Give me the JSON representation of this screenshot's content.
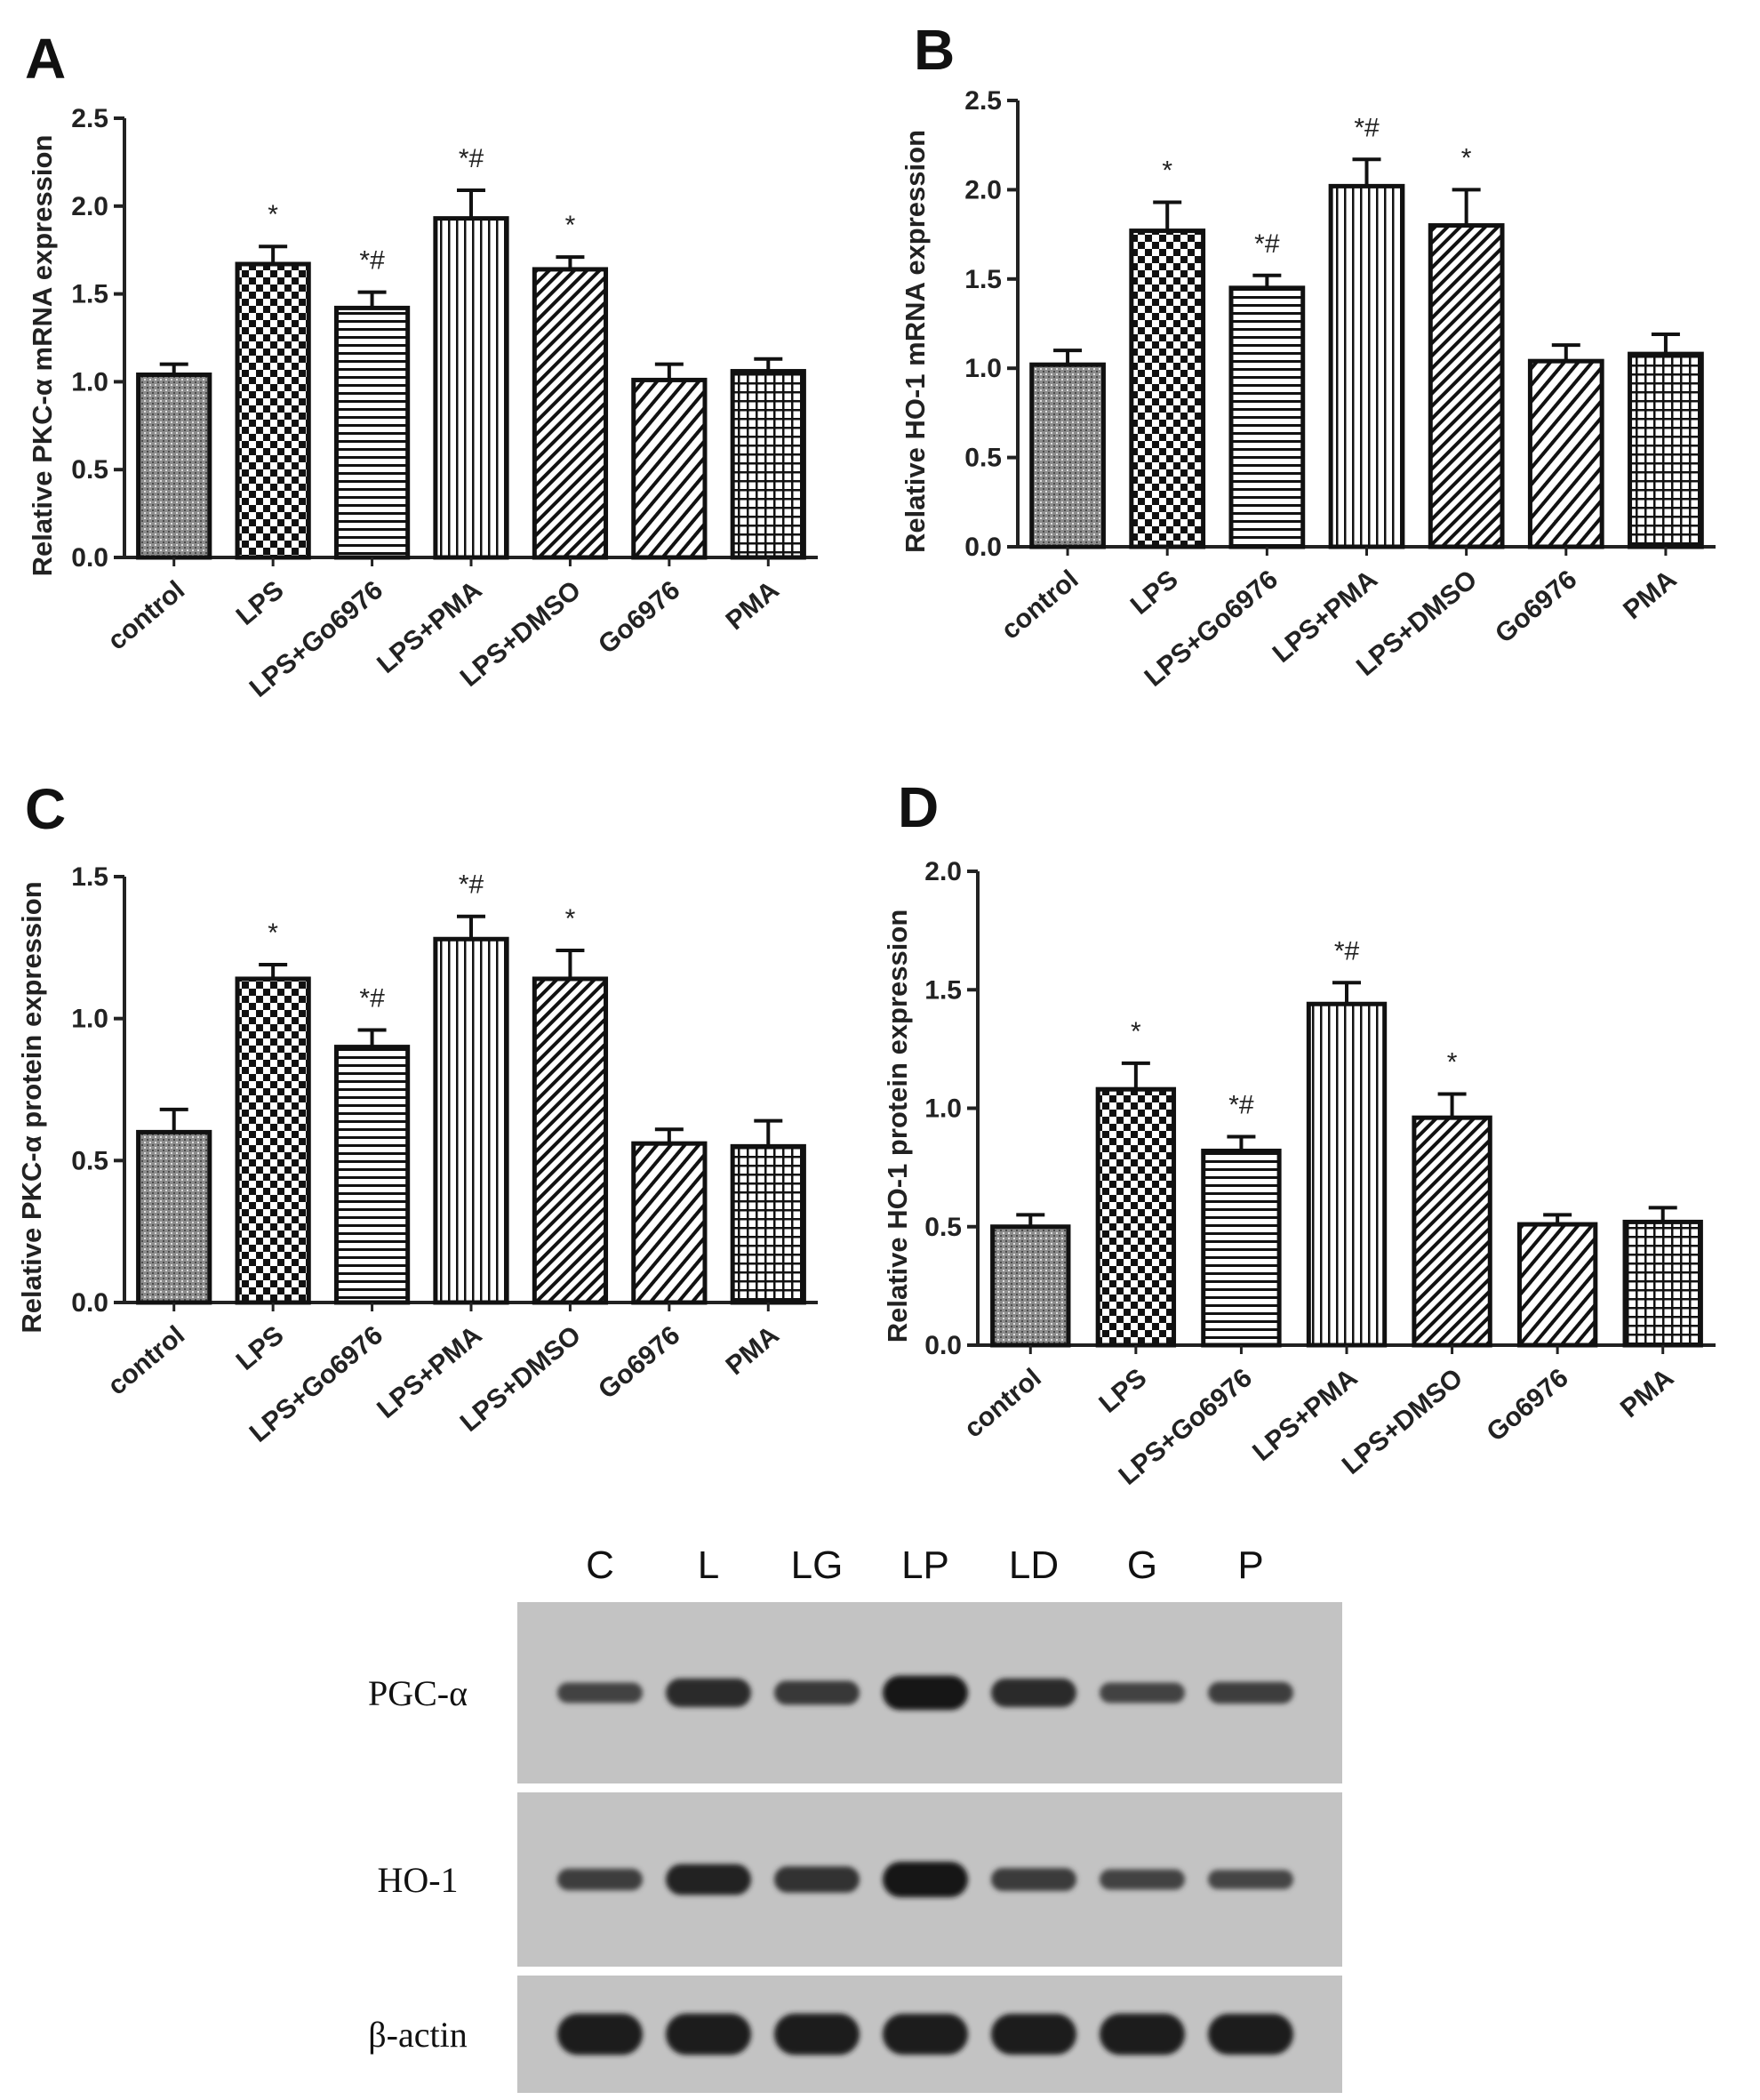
{
  "chart_data": [
    {
      "type": "bar",
      "panel": "A",
      "ylabel": "Relative PKC-α  mRNA expression",
      "ylim": [
        0,
        2.5
      ],
      "yticks": [
        "0.0",
        "0.5",
        "1.0",
        "1.5",
        "2.0",
        "2.5"
      ],
      "categories": [
        "control",
        "LPS",
        "LPS+Go6976",
        "LPS+PMA",
        "LPS+DMSO",
        "Go6976",
        "PMA"
      ],
      "values": [
        1.04,
        1.67,
        1.42,
        1.93,
        1.64,
        1.01,
        1.06
      ],
      "errors": [
        0.06,
        0.1,
        0.09,
        0.16,
        0.07,
        0.09,
        0.07
      ],
      "annotations": [
        "",
        "*",
        "*#",
        "*#",
        "*",
        "",
        ""
      ],
      "patterns": [
        "stipple",
        "checker",
        "hlines",
        "vlines",
        "diag",
        "diag2",
        "grid"
      ]
    },
    {
      "type": "bar",
      "panel": "B",
      "ylabel": "Relative HO-1 mRNA expression",
      "ylim": [
        0,
        2.5
      ],
      "yticks": [
        "0.0",
        "0.5",
        "1.0",
        "1.5",
        "2.0",
        "2.5"
      ],
      "categories": [
        "control",
        "LPS",
        "LPS+Go6976",
        "LPS+PMA",
        "LPS+DMSO",
        "Go6976",
        "PMA"
      ],
      "values": [
        1.02,
        1.77,
        1.45,
        2.02,
        1.8,
        1.04,
        1.08
      ],
      "errors": [
        0.08,
        0.16,
        0.07,
        0.15,
        0.2,
        0.09,
        0.11
      ],
      "annotations": [
        "",
        "*",
        "*#",
        "*#",
        "*",
        "",
        ""
      ],
      "patterns": [
        "stipple",
        "checker",
        "hlines",
        "vlines",
        "diag",
        "diag2",
        "grid"
      ]
    },
    {
      "type": "bar",
      "panel": "C",
      "ylabel": "Relative PKC-α  protein expression",
      "ylim": [
        0,
        1.5
      ],
      "yticks": [
        "0.0",
        "0.5",
        "1.0",
        "1.5"
      ],
      "categories": [
        "control",
        "LPS",
        "LPS+Go6976",
        "LPS+PMA",
        "LPS+DMSO",
        "Go6976",
        "PMA"
      ],
      "values": [
        0.6,
        1.14,
        0.9,
        1.28,
        1.14,
        0.56,
        0.55
      ],
      "errors": [
        0.08,
        0.05,
        0.06,
        0.08,
        0.1,
        0.05,
        0.09
      ],
      "annotations": [
        "",
        "*",
        "*#",
        "*#",
        "*",
        "",
        ""
      ],
      "patterns": [
        "stipple",
        "checker",
        "hlines",
        "vlines",
        "diag",
        "diag2",
        "grid"
      ]
    },
    {
      "type": "bar",
      "panel": "D",
      "ylabel": "Relative HO-1 protein expression",
      "ylim": [
        0,
        2.0
      ],
      "yticks": [
        "0.0",
        "0.5",
        "1.0",
        "1.5",
        "2.0"
      ],
      "categories": [
        "control",
        "LPS",
        "LPS+Go6976",
        "LPS+PMA",
        "LPS+DMSO",
        "Go6976",
        "PMA"
      ],
      "values": [
        0.5,
        1.08,
        0.82,
        1.44,
        0.96,
        0.51,
        0.52
      ],
      "errors": [
        0.05,
        0.11,
        0.06,
        0.09,
        0.1,
        0.04,
        0.06
      ],
      "annotations": [
        "",
        "*",
        "*#",
        "*#",
        "*",
        "",
        ""
      ],
      "patterns": [
        "stipple",
        "checker",
        "hlines",
        "vlines",
        "diag",
        "diag2",
        "grid"
      ]
    }
  ],
  "blot": {
    "lanes": [
      "C",
      "L",
      "LG",
      "LP",
      "LD",
      "G",
      "P"
    ],
    "rows": [
      {
        "label": "PGC-α",
        "intensity": [
          0.35,
          0.7,
          0.5,
          0.95,
          0.7,
          0.35,
          0.4
        ]
      },
      {
        "label": "HO-1",
        "intensity": [
          0.4,
          0.8,
          0.6,
          1.0,
          0.45,
          0.35,
          0.3
        ]
      },
      {
        "label": "β-actin",
        "intensity": [
          0.9,
          0.9,
          0.9,
          0.85,
          0.85,
          0.9,
          0.85
        ]
      }
    ]
  }
}
